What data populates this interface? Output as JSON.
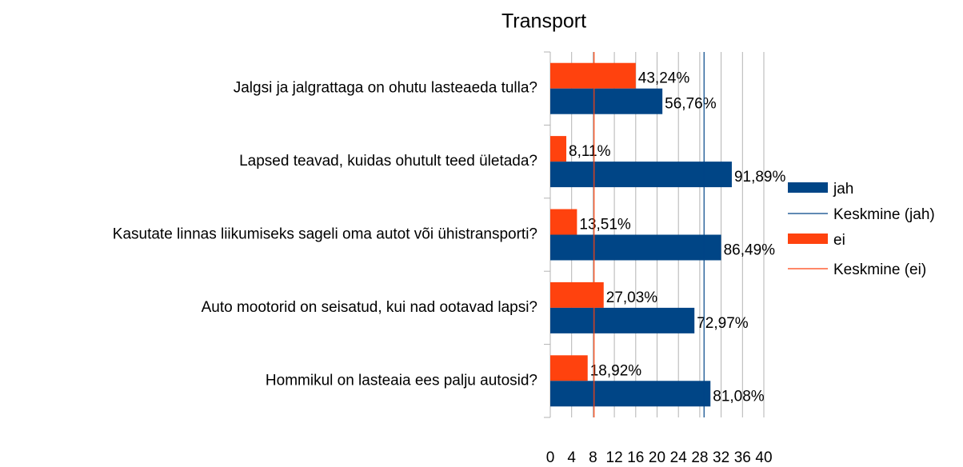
{
  "chart_data": {
    "type": "hbar",
    "title": "Transport",
    "categories": [
      "Jalgsi ja jalgrattaga on ohutu lasteaeda tulla?",
      "Lapsed teavad, kuidas ohutult teed ületada?",
      "Kasutate linnas liikumiseks sageli oma autot või ühistransporti?",
      "Auto mootorid on seisatud, kui nad ootavad lapsi?",
      "Hommikul on lasteaia ees palju autosid?"
    ],
    "series": [
      {
        "name": "jah",
        "color": "#004586",
        "values": [
          21,
          34,
          32,
          27,
          30
        ],
        "value_labels": [
          "56,76%",
          "91,89%",
          "86,49%",
          "72,97%",
          "81,08%"
        ]
      },
      {
        "name": "ei",
        "color": "#ff420e",
        "values": [
          16,
          3,
          5,
          10,
          7
        ],
        "value_labels": [
          "43,24%",
          "8,11%",
          "13,51%",
          "27,03%",
          "18,92%"
        ]
      }
    ],
    "averages": [
      {
        "name": "Keskmine (jah)",
        "color": "#004586",
        "value": 28.8
      },
      {
        "name": "Keskmine (ei)",
        "color": "#ff420e",
        "value": 8.2
      }
    ],
    "xlim": [
      0,
      40
    ],
    "xticks": [
      0,
      4,
      8,
      12,
      16,
      20,
      24,
      28,
      32,
      36,
      40
    ],
    "grid": true
  }
}
